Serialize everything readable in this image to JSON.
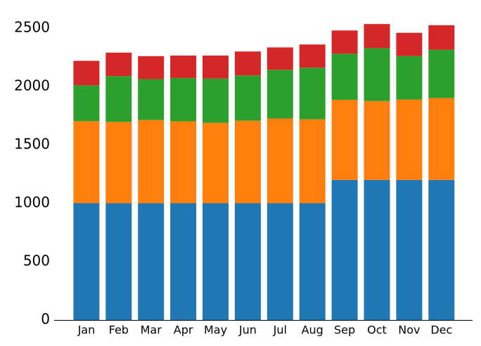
{
  "chart_data": {
    "type": "stacked_bar",
    "categories": [
      "Jan",
      "Feb",
      "Mar",
      "Apr",
      "May",
      "Jun",
      "Jul",
      "Aug",
      "Sep",
      "Oct",
      "Nov",
      "Dec"
    ],
    "series": [
      {
        "color": "#1f77b4",
        "values": [
          1000,
          1000,
          1000,
          1000,
          1000,
          1000,
          1000,
          1000,
          1200,
          1200,
          1200,
          1200
        ],
        "stack_labels": [
          "1000",
          "1000",
          "1000",
          "1000",
          "1000",
          "1000",
          "1000",
          "1000",
          "1200",
          "1200",
          "1200",
          "1200"
        ]
      },
      {
        "color": "#ff7f0e",
        "values": [
          703,
          697,
          713,
          702,
          689,
          707,
          726,
          719,
          686,
          675,
          688,
          701
        ],
        "stack_labels": [
          "1703",
          "1697",
          "1713",
          "1702",
          "1689",
          "1707",
          "1726",
          "1719",
          "1886",
          "1875",
          "1888",
          "1901"
        ]
      },
      {
        "color": "#2ca02c",
        "values": [
          307,
          392,
          350,
          371,
          379,
          388,
          417,
          442,
          395,
          454,
          373,
          414
        ],
        "stack_labels": [
          "2010",
          "2089",
          "2063",
          "2073",
          "2068",
          "2095",
          "2143",
          "2161",
          "2281",
          "2329",
          "2261",
          "2315"
        ]
      },
      {
        "color": "#d62728",
        "values": [
          210,
          201,
          197,
          192,
          197,
          205,
          192,
          199,
          199,
          206,
          199,
          210
        ]
      }
    ],
    "ylim": [
      0,
      2560
    ],
    "yticks": [
      0,
      500,
      1000,
      1500,
      2000,
      2500
    ]
  }
}
